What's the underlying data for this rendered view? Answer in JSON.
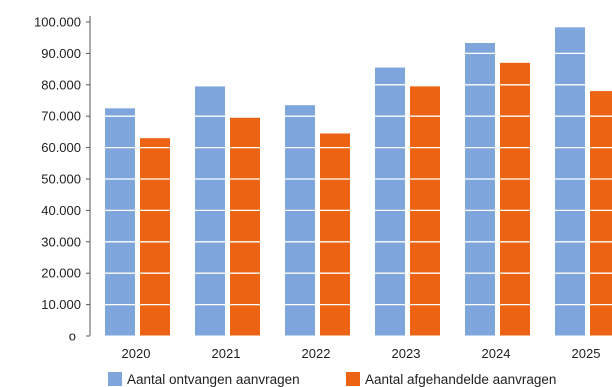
{
  "chart_data": {
    "type": "bar",
    "categories": [
      "2020",
      "2021",
      "2022",
      "2023",
      "2024",
      "2025"
    ],
    "series": [
      {
        "name": "Aantal ontvangen aanvragen",
        "color": "#7ea6dc",
        "values": [
          72500,
          79500,
          73500,
          85500,
          93300,
          98300
        ]
      },
      {
        "name": "Aantal afgehandelde aanvragen",
        "color": "#ec6413",
        "values": [
          63000,
          69500,
          64500,
          79500,
          87000,
          78000
        ]
      }
    ],
    "ylim": [
      0,
      100000
    ],
    "yticks": [
      "o",
      "10.000",
      "20.000",
      "30.000",
      "40.000",
      "50.000",
      "60.000",
      "70.000",
      "80.000",
      "90.000",
      "100.000"
    ],
    "gridlines": "white lines across bars",
    "legend_position": "bottom"
  }
}
